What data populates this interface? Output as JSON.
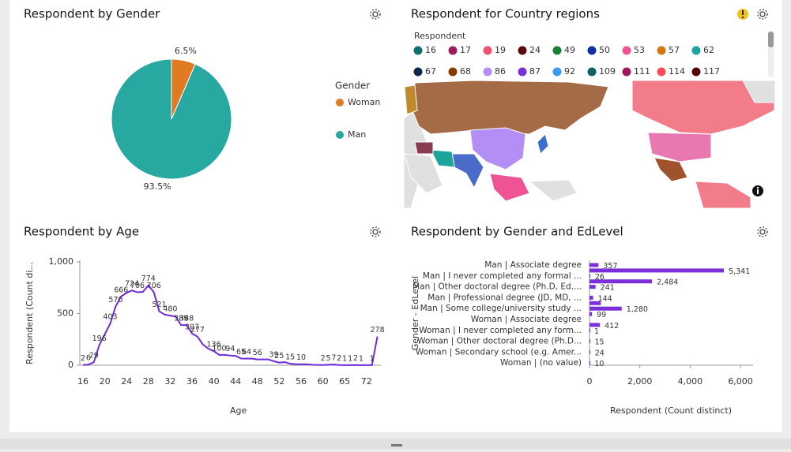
{
  "chart_data": [
    {
      "type": "pie",
      "title": "Respondent by Gender",
      "legend_title": "Gender",
      "categories": [
        "Woman",
        "Man"
      ],
      "values": [
        6.5,
        93.5
      ],
      "value_labels": [
        "6.5%",
        "93.5%"
      ],
      "colors": [
        "#e07b24",
        "#27a9a1"
      ],
      "legend": "right"
    },
    {
      "type": "map",
      "title": "Respondent for Country regions",
      "legend_title": "Respondent",
      "categories": [
        16,
        17,
        19,
        24,
        49,
        50,
        53,
        57,
        62,
        67,
        68,
        86,
        87,
        92,
        109,
        111,
        114,
        117
      ],
      "colors": [
        "#0e6f6b",
        "#9b1d5e",
        "#f0506e",
        "#5a0a0a",
        "#198038",
        "#1230a8",
        "#ee5396",
        "#d4770c",
        "#1ba39c",
        "#0b2a4a",
        "#8a3800",
        "#b28ef5",
        "#7a2fd6",
        "#3b9af0",
        "#0d6360",
        "#9f1853",
        "#fa4d56",
        "#570408"
      ]
    },
    {
      "type": "line",
      "title": "Respondent by Age",
      "xlabel": "Age",
      "ylabel": "Respondent (Count di...",
      "categories": [
        "16",
        null,
        null,
        null,
        "20",
        null,
        null,
        null,
        "24",
        null,
        null,
        null,
        "28",
        null,
        null,
        null,
        "32",
        null,
        null,
        null,
        "36",
        null,
        null,
        null,
        "40",
        null,
        null,
        null,
        "44",
        null,
        null,
        null,
        "48",
        null,
        null,
        null,
        "52",
        null,
        null,
        null,
        "56",
        null,
        null,
        null,
        "60",
        null,
        null,
        null,
        "65",
        null,
        null,
        null,
        "72",
        null,
        null
      ],
      "series": [
        {
          "name": "Respondent",
          "color": "#6d2bd9",
          "values": [
            2,
            6,
            29,
            196,
            300,
            403,
            570,
            666,
            700,
            724,
            706,
            710,
            774,
            706,
            521,
            490,
            480,
            470,
            389,
            388,
            307,
            277,
            200,
            160,
            136,
            100,
            100,
            94,
            90,
            65,
            64,
            64,
            56,
            56,
            56,
            39,
            25,
            30,
            15,
            10,
            10,
            10,
            5,
            3,
            2,
            5,
            7,
            2,
            1,
            1,
            2,
            1,
            1,
            1,
            278
          ],
          "value_labels": [
            "2",
            "6",
            "29",
            "196",
            null,
            "403",
            "570",
            "666",
            null,
            "724",
            "706",
            null,
            "774",
            "706",
            "521",
            null,
            "480",
            null,
            "389",
            "388",
            "307",
            "277",
            null,
            null,
            "136",
            "100",
            null,
            "94",
            null,
            "65",
            "64",
            null,
            "56",
            null,
            null,
            "39",
            "25",
            null,
            "15",
            null,
            "10",
            null,
            null,
            null,
            "2",
            "5",
            "7",
            "2",
            "1",
            "1",
            "2",
            "1",
            null,
            "1",
            "278"
          ]
        }
      ],
      "ylim": [
        0,
        1000
      ],
      "yticks": [
        0,
        500,
        {
          "value": 1000,
          "label": "1,000"
        }
      ],
      "grid": false
    },
    {
      "type": "hbar",
      "title": "Respondent by Gender and EdLevel",
      "xlabel": "Respondent (Count distinct)",
      "ylabel": "Gender - EdLevel",
      "categories": [
        "Man | Associate degree",
        null,
        "Man | I never completed any formal ...",
        null,
        "Man | Other doctoral degree (Ph.D, Ed....",
        null,
        "Man | Professional degree (JD, MD, ...",
        null,
        "Man | Some college/university study ...",
        null,
        "Woman | Associate degree",
        null,
        "Woman | I never completed any form...",
        null,
        "Woman | Other doctoral degree (Ph.D...",
        null,
        "Woman | Secondary school (e.g. Amer...",
        null,
        "Woman | (no value)"
      ],
      "values": [
        357,
        5341,
        26,
        2484,
        241,
        null,
        144,
        450,
        1280,
        99,
        null,
        412,
        1,
        null,
        15,
        null,
        24,
        null,
        10
      ],
      "value_labels": [
        "357",
        "5,341",
        "26",
        "2,484",
        "241",
        null,
        "144",
        null,
        "1,280",
        "99",
        null,
        "412",
        "1",
        null,
        "15",
        null,
        "24",
        null,
        "10"
      ],
      "color": "#7b2fd8",
      "xlim": [
        0,
        6500
      ],
      "xticks": [
        0,
        {
          "value": 2000,
          "label": "2,000"
        },
        {
          "value": 4000,
          "label": "4,000"
        },
        {
          "value": 6000,
          "label": "6,000"
        }
      ]
    }
  ]
}
